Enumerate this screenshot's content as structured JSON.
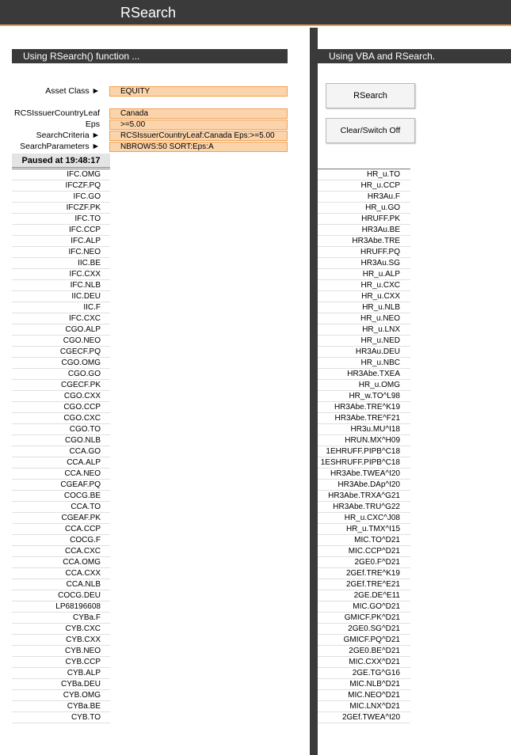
{
  "header": {
    "title": "RSearch"
  },
  "left_panel": {
    "title": "Using RSearch() function ...",
    "params": [
      {
        "label": "Asset Class ►",
        "value": "EQUITY"
      },
      {
        "label": "RCSIssuerCountryLeaf",
        "value": "Canada"
      },
      {
        "label": "Eps",
        "value": ">=5.00"
      },
      {
        "label": "SearchCriteria ►",
        "value": "RCSIssuerCountryLeaf:Canada Eps:>=5.00"
      },
      {
        "label": "SearchParameters ►",
        "value": "NBROWS:50 SORT:Eps:A"
      }
    ],
    "status": "Paused at 19:48:17",
    "results": [
      "IFC.OMG",
      "IFCZF.PQ",
      "IFC.GO",
      "IFCZF.PK",
      "IFC.TO",
      "IFC.CCP",
      "IFC.ALP",
      "IFC.NEO",
      "IIC.BE",
      "IFC.CXX",
      "IFC.NLB",
      "IIC.DEU",
      "IIC.F",
      "IFC.CXC",
      "CGO.ALP",
      "CGO.NEO",
      "CGECF.PQ",
      "CGO.OMG",
      "CGO.GO",
      "CGECF.PK",
      "CGO.CXX",
      "CGO.CCP",
      "CGO.CXC",
      "CGO.TO",
      "CGO.NLB",
      "CCA.GO",
      "CCA.ALP",
      "CCA.NEO",
      "CGEAF.PQ",
      "COCG.BE",
      "CCA.TO",
      "CGEAF.PK",
      "CCA.CCP",
      "COCG.F",
      "CCA.CXC",
      "CCA.OMG",
      "CCA.CXX",
      "CCA.NLB",
      "COCG.DEU",
      "LP68196608",
      "CYBa.F",
      "CYB.CXC",
      "CYB.CXX",
      "CYB.NEO",
      "CYB.CCP",
      "CYB.ALP",
      "CYBa.DEU",
      "CYB.OMG",
      "CYBa.BE",
      "CYB.TO"
    ]
  },
  "right_panel": {
    "title": "Using VBA and RSearch.",
    "rsearch_button": "RSearch",
    "clear_button": "Clear/Switch Off",
    "results": [
      "HR_u.TO",
      "HR_u.CCP",
      "HR3Au.F",
      "HR_u.GO",
      "HRUFF.PK",
      "HR3Au.BE",
      "HR3Abe.TRE",
      "HRUFF.PQ",
      "HR3Au.SG",
      "HR_u.ALP",
      "HR_u.CXC",
      "HR_u.CXX",
      "HR_u.NLB",
      "HR_u.NEO",
      "HR_u.LNX",
      "HR_u.NED",
      "HR3Au.DEU",
      "HR_u.NBC",
      "HR3Abe.TXEA",
      "HR_u.OMG",
      "HR_w.TO^L98",
      "HR3Abe.TRE^K19",
      "HR3Abe.TRE^F21",
      "HR3u.MU^I18",
      "HRUN.MX^H09",
      "1EHRUFF.PIPB^C18",
      "1ESHRUFF.PIPB^C18",
      "HR3Abe.TWEA^I20",
      "HR3Abe.DAp^I20",
      "HR3Abe.TRXA^G21",
      "HR3Abe.TRU^G22",
      "HR_u.CXC^J08",
      "HR_u.TMX^I15",
      "MIC.TO^D21",
      "MIC.CCP^D21",
      "2GE0.F^D21",
      "2GEf.TRE^K19",
      "2GEf.TRE^E21",
      "2GE.DE^E11",
      "MIC.GO^D21",
      "GMICF.PK^D21",
      "2GE0.SG^D21",
      "GMICF.PQ^D21",
      "2GE0.BE^D21",
      "MIC.CXX^D21",
      "2GE.TG^G16",
      "MIC.NLB^D21",
      "MIC.NEO^D21",
      "MIC.LNX^D21",
      "2GEf.TWEA^I20"
    ]
  }
}
